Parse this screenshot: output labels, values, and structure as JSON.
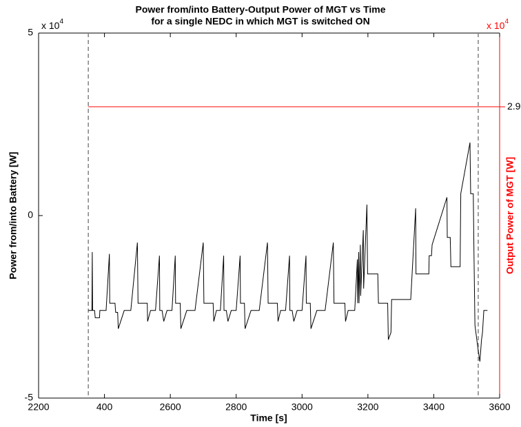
{
  "chart_data": {
    "type": "line",
    "title": [
      "Power from/into Battery-Output Power of MGT vs Time",
      "for a single NEDC in which MGT is switched ON"
    ],
    "x_label": "Time [s]",
    "y_label": "Power from/into Battery [W]",
    "y2_label": "Output Power of MGT [W]",
    "y_scale_label": {
      "text": "x 10",
      "power": "4"
    },
    "y2_scale_label": {
      "text": "x 10",
      "power": "4"
    },
    "xlim": [
      2200,
      3600
    ],
    "xticks": [
      2200,
      {
        "value": 2400,
        "label": "400"
      },
      2600,
      2800,
      3000,
      3200,
      3400,
      3600
    ],
    "ylim": [
      -5,
      5
    ],
    "yticks": [
      -5,
      0,
      5
    ],
    "y2lim": [
      -5,
      5
    ],
    "y2ticks": [
      2.98
    ],
    "y2_color": "#ff0000",
    "vlines": [
      2351,
      3535
    ],
    "vline_color": "#808080",
    "grid": false,
    "series": [
      {
        "name": "Power from/into Battery",
        "color": "#000000",
        "x": [
          2351,
          2362,
          2363,
          2364,
          2370,
          2372,
          2385,
          2386,
          2405,
          2415,
          2416,
          2432,
          2434,
          2440,
          2442,
          2460,
          2480,
          2500,
          2502,
          2530,
          2531,
          2540,
          2555,
          2567,
          2568,
          2575,
          2580,
          2590,
          2605,
          2615,
          2616,
          2630,
          2632,
          2650,
          2675,
          2700,
          2702,
          2730,
          2732,
          2740,
          2752,
          2762,
          2763,
          2770,
          2775,
          2785,
          2800,
          2812,
          2813,
          2825,
          2827,
          2845,
          2870,
          2895,
          2897,
          2925,
          2927,
          2935,
          2950,
          2962,
          2963,
          2970,
          2975,
          2985,
          3000,
          3012,
          3013,
          3025,
          3027,
          3045,
          3070,
          3095,
          3097,
          3130,
          3132,
          3140,
          3160,
          3168,
          3169,
          3172,
          3173,
          3177,
          3178,
          3186,
          3187,
          3197,
          3199,
          3230,
          3232,
          3260,
          3262,
          3270,
          3272,
          3330,
          3345,
          3346,
          3385,
          3386,
          3393,
          3395,
          3440,
          3441,
          3450,
          3452,
          3480,
          3482,
          3510,
          3512,
          3520,
          3522,
          3525,
          3535,
          3540,
          3545,
          3548,
          3552,
          3563
        ],
        "values": [
          -2.6,
          -2.6,
          -1.0,
          -2.6,
          -2.6,
          -2.8,
          -2.8,
          -2.6,
          -2.6,
          -1.05,
          -2.4,
          -2.4,
          -2.65,
          -2.65,
          -3.1,
          -2.6,
          -2.6,
          -0.74,
          -2.4,
          -2.4,
          -2.9,
          -2.6,
          -2.6,
          -1.1,
          -2.6,
          -2.6,
          -2.9,
          -2.6,
          -2.6,
          -1.1,
          -2.4,
          -2.4,
          -3.1,
          -2.6,
          -2.6,
          -0.74,
          -2.4,
          -2.4,
          -2.9,
          -2.6,
          -2.6,
          -1.1,
          -2.6,
          -2.6,
          -2.9,
          -2.6,
          -2.6,
          -1.1,
          -2.4,
          -2.4,
          -3.1,
          -2.6,
          -2.6,
          -0.74,
          -2.4,
          -2.4,
          -2.9,
          -2.6,
          -2.6,
          -1.1,
          -2.6,
          -2.6,
          -2.9,
          -2.6,
          -2.6,
          -1.1,
          -2.4,
          -2.4,
          -3.1,
          -2.6,
          -2.6,
          -0.74,
          -2.4,
          -2.4,
          -2.9,
          -2.6,
          -2.6,
          -1.2,
          -2.4,
          -1.0,
          -2.4,
          -0.8,
          -2.2,
          -0.4,
          -2.0,
          0.3,
          -1.6,
          -1.6,
          -2.4,
          -2.4,
          -3.4,
          -3.2,
          -2.3,
          -2.3,
          0.2,
          -1.6,
          -1.6,
          -1.1,
          -1.1,
          -0.8,
          0.5,
          -0.6,
          -0.6,
          -1.4,
          -1.4,
          0.6,
          2.0,
          0.6,
          0.6,
          -1.0,
          -3.0,
          -3.7,
          -4.0,
          -3.4,
          -3.2,
          -2.6,
          -2.6
        ]
      },
      {
        "name": "Output Power of MGT",
        "color": "#ff0000",
        "axis": "y2",
        "x": [
          2351,
          3600
        ],
        "values": [
          2.98,
          2.98
        ]
      }
    ]
  }
}
